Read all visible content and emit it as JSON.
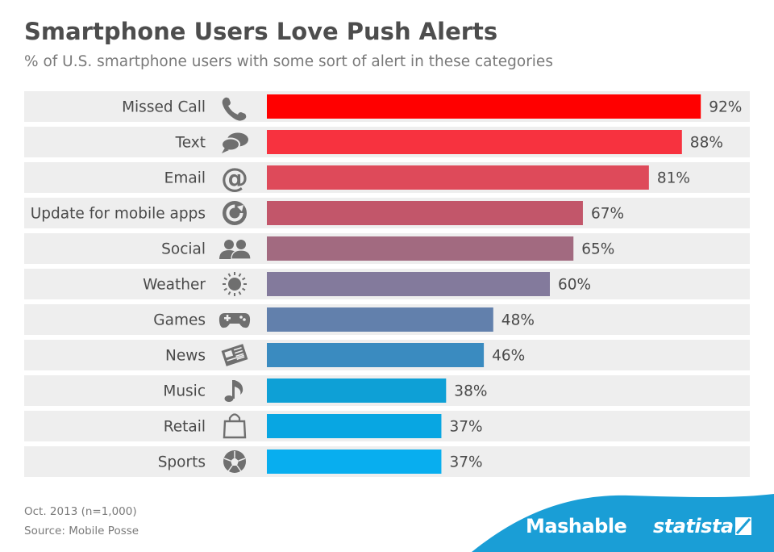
{
  "title": "Smartphone Users Love Push Alerts",
  "subtitle": "% of U.S. smartphone users with some sort of alert in these categories",
  "footer": {
    "date_note": "Oct. 2013 (n=1,000)",
    "source": "Source: Mobile Posse"
  },
  "brands": {
    "mashable": "Mashable",
    "statista": "statista"
  },
  "colors": {
    "row_background": "#eeeeee",
    "icon_gray": "#6f6f6f",
    "brand_blue": "#1a9ed6"
  },
  "chart_data": {
    "type": "bar",
    "orientation": "horizontal",
    "title": "Smartphone Users Love Push Alerts",
    "subtitle": "% of U.S. smartphone users with some sort of alert in these categories",
    "categories": [
      "Missed Call",
      "Text",
      "Email",
      "Update for mobile apps",
      "Social",
      "Weather",
      "Games",
      "News",
      "Music",
      "Retail",
      "Sports"
    ],
    "values": [
      92,
      88,
      81,
      67,
      65,
      60,
      48,
      46,
      38,
      37,
      37
    ],
    "value_labels": [
      "92%",
      "88%",
      "81%",
      "67%",
      "65%",
      "60%",
      "48%",
      "46%",
      "38%",
      "37%",
      "37%"
    ],
    "icons": [
      "phone-icon",
      "speech-bubbles-icon",
      "at-sign-icon",
      "update-arrow-icon",
      "people-icon",
      "sun-icon",
      "gamepad-icon",
      "newspaper-icon",
      "music-note-icon",
      "shopping-bag-icon",
      "soccer-ball-icon"
    ],
    "bar_colors": [
      "#ff0000",
      "#f7323f",
      "#de4a5a",
      "#c2566a",
      "#a26a80",
      "#837a9c",
      "#6280ac",
      "#3a8bc0",
      "#0ea0d6",
      "#08a6e2",
      "#08aeef"
    ],
    "xlim": [
      0,
      100
    ],
    "grid": false,
    "legend": "none"
  }
}
